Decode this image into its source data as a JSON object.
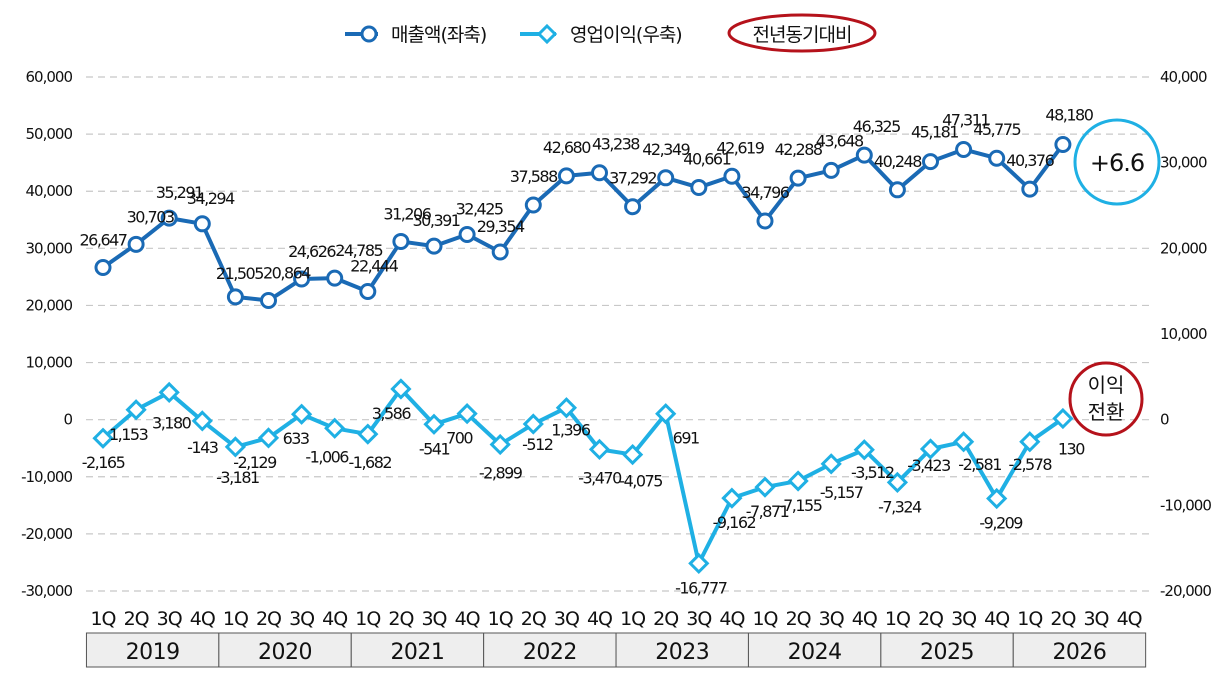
{
  "chart_data": {
    "type": "line",
    "legend": {
      "placement": "top-center",
      "items": [
        {
          "label": "매출액(좌축)",
          "color": "#1a6ab5",
          "marker": "circle"
        },
        {
          "label": "영업이익(우축)",
          "color": "#1fb0e4",
          "marker": "diamond"
        },
        {
          "label": "전년동기대비",
          "color": "#c0161e",
          "marker": "ellipse-outline"
        }
      ]
    },
    "left_axis": {
      "min": -30000,
      "max": 60000,
      "ticks": [
        "60,000",
        "50,000",
        "40,000",
        "30,000",
        "20,000",
        "10,000",
        "0",
        "-10,000",
        "-20,000",
        "-30,000"
      ]
    },
    "right_axis": {
      "min": -20000,
      "max": 40000,
      "ticks": [
        "40,000",
        "30,000",
        "20,000",
        "10,000",
        "0",
        "-10,000",
        "-20,000"
      ]
    },
    "grid": true,
    "quarters": [
      "1Q",
      "2Q",
      "3Q",
      "4Q"
    ],
    "years": [
      "2019",
      "2020",
      "2021",
      "2022",
      "2023",
      "2024",
      "2025",
      "2026"
    ],
    "series": [
      {
        "name": "매출액(좌축)",
        "axis": "left",
        "color": "#1a6ab5",
        "values": [
          26647,
          30703,
          35291,
          34294,
          21505,
          20864,
          24626,
          24785,
          22444,
          31206,
          30391,
          32425,
          29354,
          37588,
          42680,
          43238,
          37292,
          42349,
          40661,
          42619,
          34796,
          42288,
          43648,
          46325,
          40248,
          45181,
          47311,
          45775,
          40376,
          48180
        ],
        "labels": [
          "26,647",
          "30,703",
          "35,291",
          "34,294",
          "21,505",
          "20,864",
          "24,626",
          "24,785",
          "22,444",
          "31,206",
          "30,391",
          "32,425",
          "29,354",
          "37,588",
          "42,680",
          "43,238",
          "37,292",
          "42,349",
          "40,661",
          "42,619",
          "34,796",
          "42,288",
          "43,648",
          "46,325",
          "40,248",
          "45,181",
          "47,311",
          "45,775",
          "40,376",
          "48,180"
        ]
      },
      {
        "name": "영업이익(우축)",
        "axis": "right",
        "color": "#1fb0e4",
        "values": [
          -2165,
          1153,
          3180,
          -143,
          -3181,
          -2129,
          633,
          -1006,
          -1682,
          3586,
          -541,
          700,
          -2899,
          -512,
          1396,
          -3470,
          -4075,
          691,
          -16777,
          -9162,
          -7871,
          -7155,
          -5157,
          -3512,
          -7324,
          -3423,
          -2581,
          -9209,
          -2578,
          130
        ],
        "labels": [
          "-2,165",
          "1,153",
          "3,180",
          "-143",
          "-3,181",
          "-2,129",
          "633",
          "-1,006",
          "-1,682",
          "3,586",
          "-541",
          "700",
          "-2,899",
          "-512",
          "1,396",
          "-3,470",
          "-4,075",
          "691",
          "-16,777",
          "-9,162",
          "-7,871",
          "-7,155",
          "-5,157",
          "-3,512",
          "-7,324",
          "-3,423",
          "-2,581",
          "-9,209",
          "-2,578",
          "130"
        ]
      }
    ],
    "annotations": {
      "revenue_yoy": "+6.6",
      "profit_yoy_line1": "이익",
      "profit_yoy_line2": "전환"
    }
  }
}
